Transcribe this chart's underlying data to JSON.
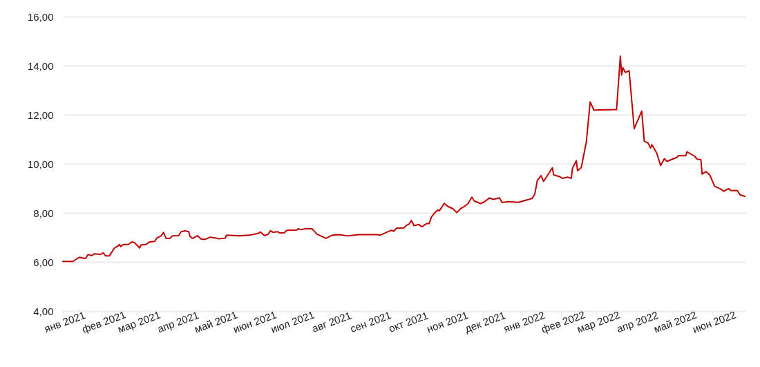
{
  "chart_data": {
    "type": "line",
    "x": [
      "2021-01-01",
      "2021-01-09",
      "2021-01-14",
      "2021-01-19",
      "2021-01-21",
      "2021-01-24",
      "2021-01-26",
      "2021-01-31",
      "2021-02-02",
      "2021-02-04",
      "2021-02-07",
      "2021-02-11",
      "2021-02-14",
      "2021-02-15",
      "2021-02-16",
      "2021-02-18",
      "2021-02-22",
      "2021-02-25",
      "2021-02-27",
      "2021-03-03",
      "2021-03-04",
      "2021-03-08",
      "2021-03-11",
      "2021-03-15",
      "2021-03-17",
      "2021-03-20",
      "2021-03-22",
      "2021-03-24",
      "2021-03-27",
      "2021-03-29",
      "2021-04-03",
      "2021-04-05",
      "2021-04-08",
      "2021-04-11",
      "2021-04-12",
      "2021-04-14",
      "2021-04-18",
      "2021-04-21",
      "2021-04-24",
      "2021-04-28",
      "2021-05-03",
      "2021-05-05",
      "2021-05-10",
      "2021-05-11",
      "2021-05-17",
      "2021-05-21",
      "2021-05-30",
      "2021-06-05",
      "2021-06-07",
      "2021-06-10",
      "2021-06-13",
      "2021-06-15",
      "2021-06-17",
      "2021-06-21",
      "2021-06-22",
      "2021-06-26",
      "2021-06-28",
      "2021-07-06",
      "2021-07-07",
      "2021-07-09",
      "2021-07-13",
      "2021-07-18",
      "2021-07-22",
      "2021-07-26",
      "2021-07-29",
      "2021-08-03",
      "2021-08-09",
      "2021-08-15",
      "2021-08-24",
      "2021-09-08",
      "2021-09-10",
      "2021-09-19",
      "2021-09-21",
      "2021-09-23",
      "2021-09-29",
      "2021-10-01",
      "2021-10-03",
      "2021-10-05",
      "2021-10-07",
      "2021-10-11",
      "2021-10-13",
      "2021-10-14",
      "2021-10-17",
      "2021-10-19",
      "2021-10-21",
      "2021-10-24",
      "2021-10-26",
      "2021-10-27",
      "2021-10-29",
      "2021-10-31",
      "2021-11-03",
      "2021-11-07",
      "2021-11-10",
      "2021-11-13",
      "2021-11-16",
      "2021-11-19",
      "2021-11-22",
      "2021-11-24",
      "2021-11-29",
      "2021-12-02",
      "2021-12-06",
      "2021-12-09",
      "2021-12-14",
      "2021-12-16",
      "2021-12-21",
      "2021-12-29",
      "2022-01-09",
      "2022-01-11",
      "2022-01-13",
      "2022-01-16",
      "2022-01-18",
      "2022-01-25",
      "2022-01-26",
      "2022-01-31",
      "2022-02-02",
      "2022-02-06",
      "2022-02-09",
      "2022-02-10",
      "2022-02-13",
      "2022-02-14",
      "2022-02-17",
      "2022-02-21",
      "2022-02-24",
      "2022-02-27",
      "2022-03-17",
      "2022-03-20",
      "2022-03-21",
      "2022-03-22",
      "2022-03-24",
      "2022-03-27",
      "2022-03-31",
      "2022-04-06",
      "2022-04-08",
      "2022-04-11",
      "2022-04-13",
      "2022-04-14",
      "2022-04-18",
      "2022-04-21",
      "2022-04-24",
      "2022-04-26",
      "2022-05-04",
      "2022-05-05",
      "2022-05-11",
      "2022-05-12",
      "2022-05-18",
      "2022-05-20",
      "2022-05-23",
      "2022-05-24",
      "2022-05-27",
      "2022-05-30",
      "2022-06-03",
      "2022-06-08",
      "2022-06-10",
      "2022-06-14",
      "2022-06-16",
      "2022-06-21",
      "2022-06-23",
      "2022-06-27"
    ],
    "series": [
      {
        "color": "#c00000",
        "values": [
          6.02,
          6.02,
          6.19,
          6.14,
          6.3,
          6.26,
          6.33,
          6.31,
          6.37,
          6.25,
          6.25,
          6.57,
          6.66,
          6.71,
          6.63,
          6.71,
          6.71,
          6.82,
          6.78,
          6.57,
          6.69,
          6.71,
          6.82,
          6.84,
          6.99,
          7.06,
          7.2,
          6.96,
          6.96,
          7.06,
          7.07,
          7.23,
          7.27,
          7.23,
          7.04,
          6.96,
          7.07,
          6.93,
          6.92,
          7.01,
          6.97,
          6.94,
          6.97,
          7.09,
          7.08,
          7.06,
          7.1,
          7.16,
          7.22,
          7.08,
          7.12,
          7.27,
          7.21,
          7.23,
          7.18,
          7.19,
          7.29,
          7.3,
          7.35,
          7.32,
          7.35,
          7.35,
          7.13,
          7.04,
          6.96,
          7.09,
          7.11,
          7.06,
          7.11,
          7.11,
          7.09,
          7.29,
          7.25,
          7.37,
          7.39,
          7.49,
          7.54,
          7.69,
          7.48,
          7.53,
          7.44,
          7.46,
          7.56,
          7.56,
          7.84,
          8.03,
          8.12,
          8.08,
          8.22,
          8.39,
          8.26,
          8.17,
          8.01,
          8.17,
          8.26,
          8.38,
          8.64,
          8.48,
          8.38,
          8.45,
          8.61,
          8.55,
          8.61,
          8.42,
          8.46,
          8.43,
          8.59,
          8.76,
          9.32,
          9.52,
          9.28,
          9.84,
          9.55,
          9.47,
          9.41,
          9.46,
          9.41,
          9.82,
          10.13,
          9.72,
          9.85,
          10.9,
          12.52,
          12.19,
          12.21,
          14.39,
          13.62,
          13.92,
          13.72,
          13.79,
          11.43,
          12.15,
          10.92,
          10.85,
          10.64,
          10.78,
          10.43,
          9.93,
          10.21,
          10.1,
          10.26,
          10.33,
          10.33,
          10.49,
          10.31,
          10.19,
          10.17,
          9.58,
          9.68,
          9.55,
          9.08,
          8.97,
          8.88,
          8.99,
          8.91,
          8.91,
          8.74,
          8.67
        ]
      }
    ],
    "xlim": [
      "2021-01-01",
      "2022-06-28"
    ],
    "xticks": [
      {
        "value": "2021-01-01",
        "label": "янв 2021"
      },
      {
        "value": "2021-02-01",
        "label": "фев 2021"
      },
      {
        "value": "2021-03-01",
        "label": "мар 2021"
      },
      {
        "value": "2021-04-01",
        "label": "апр 2021"
      },
      {
        "value": "2021-05-01",
        "label": "май 2021"
      },
      {
        "value": "2021-06-01",
        "label": "июн 2021"
      },
      {
        "value": "2021-07-01",
        "label": "июл 2021"
      },
      {
        "value": "2021-08-01",
        "label": "авг 2021"
      },
      {
        "value": "2021-09-01",
        "label": "сен 2021"
      },
      {
        "value": "2021-10-01",
        "label": "окт 2021"
      },
      {
        "value": "2021-11-01",
        "label": "ноя 2021"
      },
      {
        "value": "2021-12-01",
        "label": "дек 2021"
      },
      {
        "value": "2022-01-01",
        "label": "янв 2022"
      },
      {
        "value": "2022-02-01",
        "label": "фев 2022"
      },
      {
        "value": "2022-03-01",
        "label": "мар 2022"
      },
      {
        "value": "2022-04-01",
        "label": "апр 2022"
      },
      {
        "value": "2022-05-01",
        "label": "май 2022"
      },
      {
        "value": "2022-06-01",
        "label": "июн 2022"
      }
    ],
    "ylim": [
      4,
      16
    ],
    "yticks": [
      {
        "value": 4,
        "label": "4,00"
      },
      {
        "value": 6,
        "label": "6,00"
      },
      {
        "value": 8,
        "label": "8,00"
      },
      {
        "value": 10,
        "label": "10,00"
      },
      {
        "value": 12,
        "label": "12,00"
      },
      {
        "value": 14,
        "label": "14,00"
      },
      {
        "value": 16,
        "label": "16,00"
      }
    ],
    "grid": "y",
    "marker": "none",
    "line_style": "solid"
  }
}
